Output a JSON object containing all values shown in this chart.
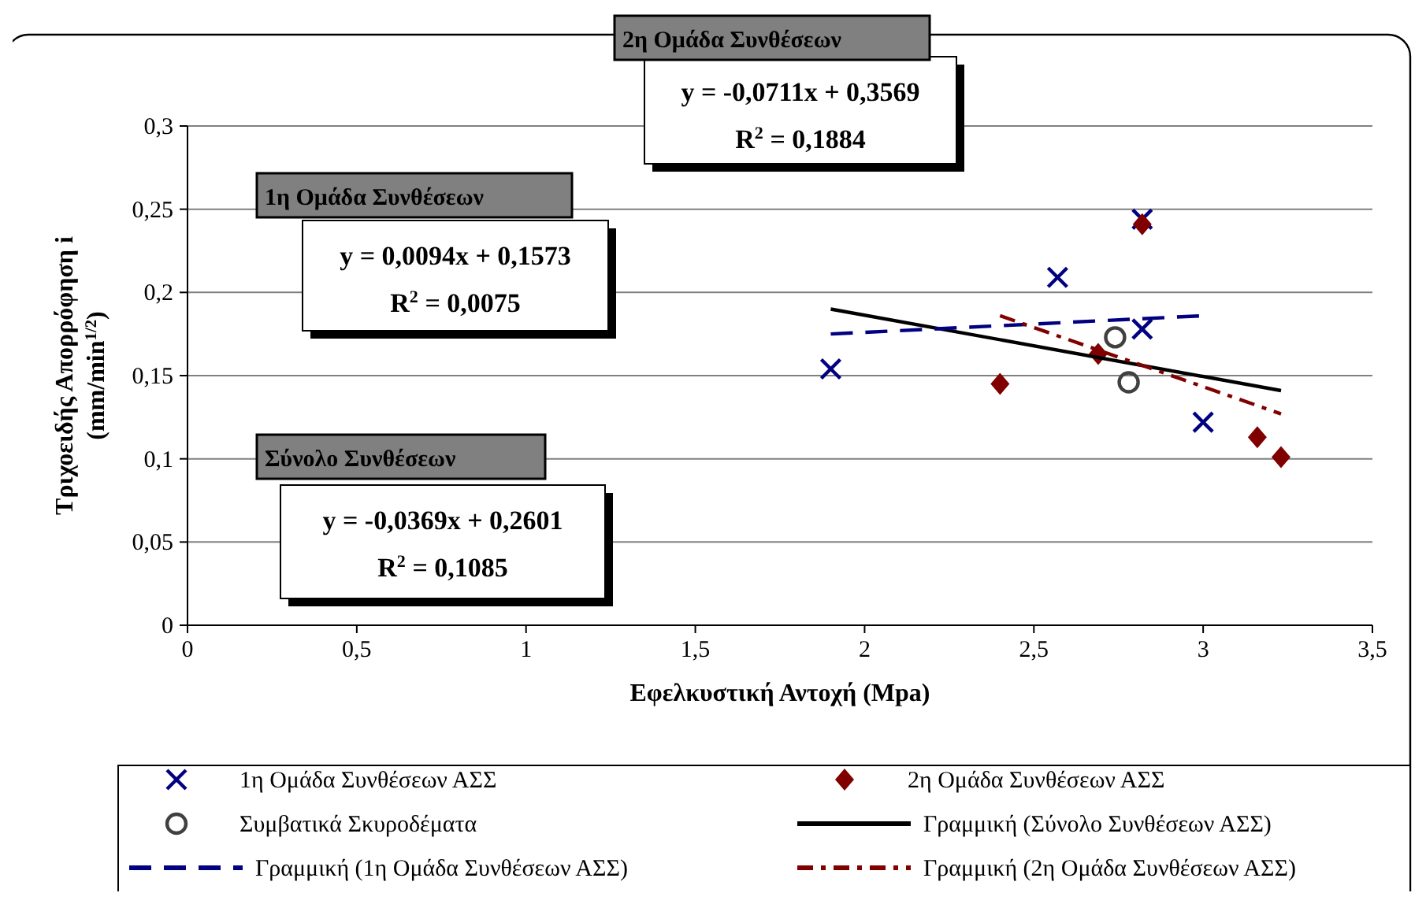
{
  "chart_data": {
    "type": "scatter",
    "xlabel": "Εφελκυστική Αντοχή (Mpa)",
    "ylabel": "Τριχοειδής Απορρόφηση i (mm/min$^{1/2}$)",
    "xlim": [
      0,
      3.5
    ],
    "ylim": [
      0,
      0.3
    ],
    "xticks": [
      0,
      {
        "value": 0.5,
        "label": "0,5"
      },
      1,
      {
        "value": 1.5,
        "label": "1,5"
      },
      2,
      {
        "value": 2.5,
        "label": "2,5"
      },
      3,
      {
        "value": 3.5,
        "label": "3,5"
      }
    ],
    "yticks": [
      0,
      {
        "value": 0.05,
        "label": "0,05"
      },
      {
        "value": 0.1,
        "label": "0,1"
      },
      {
        "value": 0.15,
        "label": "0,15"
      },
      {
        "value": 0.2,
        "label": "0,2"
      },
      {
        "value": 0.25,
        "label": "0,25"
      },
      {
        "value": 0.3,
        "label": "0,3"
      }
    ],
    "grid": "y",
    "legend": "bottom",
    "series": [
      {
        "name": "1η Ομάδα Συνθέσεων ΑΣΣ",
        "marker": "cross",
        "color": "#000080",
        "x": [
          1.9,
          2.57,
          2.82,
          2.82,
          3.0
        ],
        "values": [
          0.154,
          0.209,
          0.244,
          0.178,
          0.122
        ]
      },
      {
        "name": "2η Ομάδα Συνθέσεων ΑΣΣ",
        "marker": "diamond",
        "color": "#800000",
        "x": [
          2.4,
          2.69,
          2.82,
          3.16,
          3.23
        ],
        "values": [
          0.145,
          0.163,
          0.241,
          0.113,
          0.101
        ]
      },
      {
        "name": "Συμβατικά Σκυροδέματα",
        "marker": "circle",
        "color": "#404040",
        "x": [
          2.74,
          2.78
        ],
        "values": [
          0.173,
          0.146
        ]
      },
      {
        "name": "Γραμμική (Σύνολο Συνθέσεων ΑΣΣ)",
        "type": "line",
        "line_style": "solid",
        "color": "#000000",
        "x": [
          1.9,
          3.23
        ],
        "values": [
          0.19,
          0.141
        ]
      },
      {
        "name": "Γραμμική (1η Ομάδα Συνθέσεων ΑΣΣ)",
        "type": "line",
        "line_style": "dashed",
        "color": "#000080",
        "x": [
          1.9,
          3.0
        ],
        "values": [
          0.175,
          0.186
        ]
      },
      {
        "name": "Γραμμική (2η Ομάδα Συνθέσεων ΑΣΣ)",
        "type": "line",
        "line_style": "dotted",
        "color": "#800000",
        "x": [
          2.4,
          3.23
        ],
        "values": [
          0.186,
          0.127
        ]
      }
    ],
    "annotations": [
      "2η Ομάδα Συνθέσεων",
      "y = -0,0711x + 0,3569",
      "R$^{2}$ = 0,1884",
      "1η Ομάδα Συνθέσεων",
      "y = 0,0094x + 0,1573",
      "R$^{2}$ = 0,0075",
      "Σύνολο Συνθέσεων",
      "y = -0,0369x + 0,2601",
      "R$^{2}$ = 0,1085"
    ]
  }
}
